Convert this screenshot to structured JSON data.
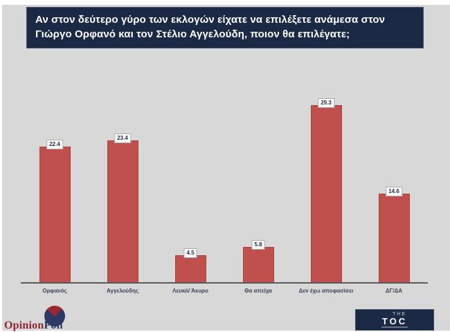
{
  "header": {
    "question": "Αν στον δεύτερο γύρο των εκλογών είχατε να επιλέξετε ανάμεσα στον Γιώργο Ορφανό και τον Στέλιο Αγγελούδη, ποιον θα επιλέγατε;"
  },
  "chart_data": {
    "type": "bar",
    "categories": [
      "Ορφανός",
      "Αγγελούδης",
      "Λευκό/ Άκυρο",
      "Θα απείχα",
      "Δεν έχω αποφασίσει",
      "ΔΓ/ΔΑ"
    ],
    "values": [
      22.4,
      23.4,
      4.5,
      5.8,
      29.3,
      14.6
    ],
    "title": "",
    "xlabel": "",
    "ylabel": "",
    "ylim": [
      0,
      32
    ],
    "grid": false,
    "legend": false,
    "data_labels": true,
    "bar_color": "#c0504d"
  },
  "footer": {
    "opinion_poll_logo": {
      "part1": "Opinion",
      "part2": "Poll"
    },
    "toc_logo": {
      "line1": "THE",
      "line2": "TOC"
    }
  },
  "colors": {
    "background": "#d8d8d8",
    "header_navy": "#1b2944",
    "bar_red": "#c0504d",
    "axis_gray": "#5a5a5a",
    "logo_red": "#9e2533",
    "logo_navy": "#2d3a63"
  }
}
